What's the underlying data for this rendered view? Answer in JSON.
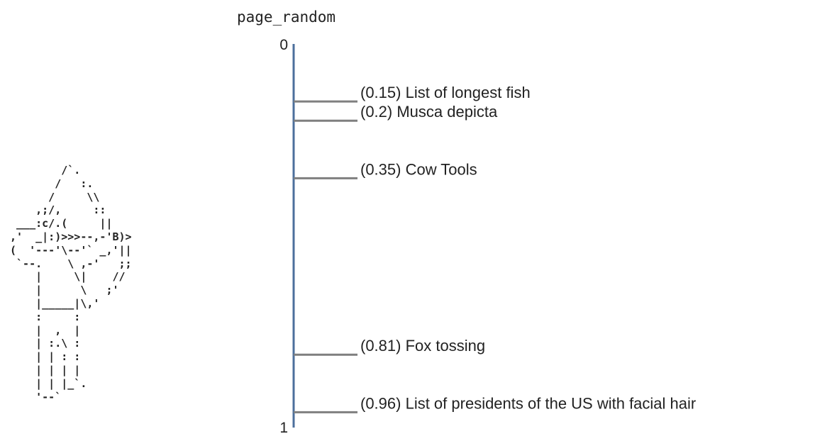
{
  "title": "page_random",
  "ascii_art": "        /`.\n       /   :.\n      /     \\\\\n    ,;/,     ::\n ___:c/.(     ||\n,'  _|:)>>>--,-'B)>\n(  '---'\\--'` _,'||\n `--.    \\ ,-'   ;;\n    |     \\|    //\n    |      \\   ;'\n    |_____|\\,'\n    :     :\n    |  ,  |\n    | :.\\ :\n    | | : :\n    | | | |\n    | | |_`.\n    '--`",
  "axis": {
    "min_label": "0",
    "max_label": "1",
    "min": 0,
    "max": 1
  },
  "colors": {
    "axis": "#4c6f9c",
    "entry": "#7f7f7f",
    "text": "#222222"
  },
  "entries": [
    {
      "position": 0.15,
      "label": "(0.15) List of longest fish"
    },
    {
      "position": 0.2,
      "label": "(0.2) Musca depicta"
    },
    {
      "position": 0.35,
      "label": "(0.35) Cow Tools"
    },
    {
      "position": 0.81,
      "label": "(0.81) Fox tossing"
    },
    {
      "position": 0.96,
      "label": "(0.96) List of presidents of the US with facial hair"
    }
  ]
}
